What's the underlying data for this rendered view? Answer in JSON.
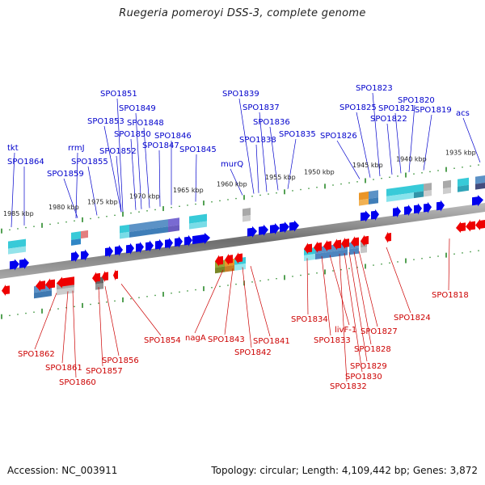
{
  "title": "Ruegeria pomeroyi DSS-3, complete genome",
  "footer": {
    "accession": "Accession: NC_003911",
    "summary": "Topology: circular; Length: 4,109,442 bp; Genes: 3,872"
  },
  "scale_ticks": [
    "1985 kbp",
    "1980 kbp",
    "1975 kbp",
    "1970 kbp",
    "1965 kbp",
    "1960 kbp",
    "1955 kbp",
    "1950 kbp",
    "1945 kbp",
    "1940 kbp",
    "1935 kbp"
  ],
  "forward_labels": [
    "tkt",
    "SPO1864",
    "rrmJ",
    "SPO1859",
    "SPO1855",
    "SPO1853",
    "SPO1852",
    "SPO1851",
    "SPO1850",
    "SPO1849",
    "SPO1848",
    "SPO1847",
    "SPO1846",
    "SPO1845",
    "murQ",
    "SPO1839",
    "SPO1838",
    "SPO1837",
    "SPO1836",
    "SPO1835",
    "SPO1826",
    "SPO1825",
    "SPO1823",
    "SPO1822",
    "SPO1821",
    "SPO1820",
    "SPO1819",
    "acs"
  ],
  "reverse_labels": [
    "SPO1862",
    "SPO1861",
    "SPO1860",
    "SPO1857",
    "SPO1856",
    "SPO1854",
    "nagA",
    "SPO1843",
    "SPO1842",
    "SPO1841",
    "SPO1834",
    "SPO1833",
    "livF-1",
    "SPO1832",
    "SPO1830",
    "SPO1829",
    "SPO1828",
    "SPO1827",
    "SPO1824",
    "SPO1818"
  ],
  "colors": {
    "forward": "#0000ee",
    "reverse": "#ee0000",
    "forward_label": "#0000cc",
    "reverse_label": "#cc0000",
    "backbone": "#888888",
    "tick": "#2a8a2a",
    "cog_cyan": "#22c4d4",
    "cog_steel": "#4a86c0",
    "cog_purple": "#6a5acd",
    "cog_gray": "#a0a0a0",
    "cog_orange": "#e88a10",
    "cog_olive": "#8a9a20",
    "cog_pink": "#e07070"
  }
}
